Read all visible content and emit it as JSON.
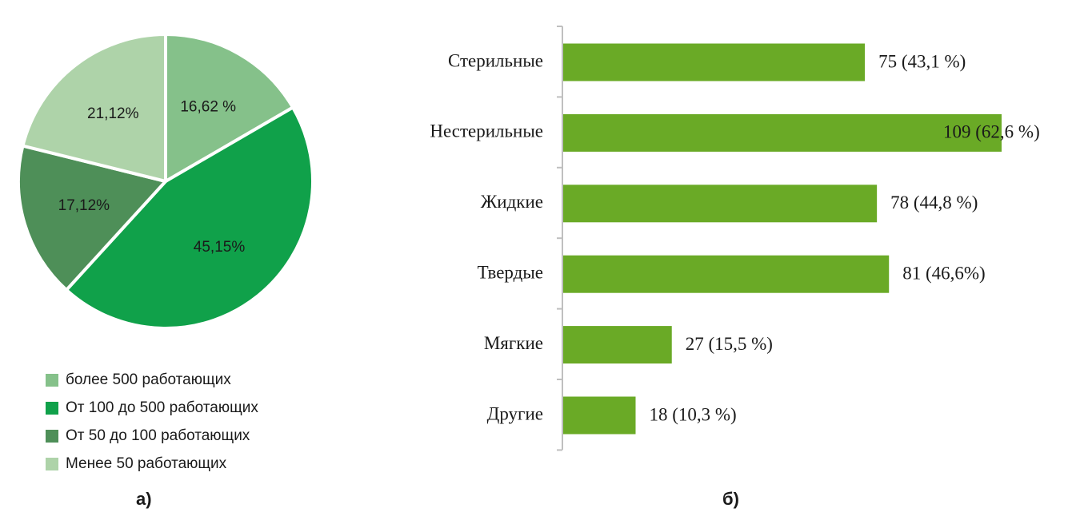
{
  "chart_data": [
    {
      "type": "pie",
      "panel_label": "а)",
      "slices": [
        {
          "name": "более 500 работающих",
          "value": 16.62,
          "label": "16,62 %",
          "color": "#85c18a"
        },
        {
          "name": "От 100 до 500 работающих",
          "value": 45.15,
          "label": "45,15%",
          "color": "#10a14a"
        },
        {
          "name": "От 50 до 100 работающих",
          "value": 17.12,
          "label": "17,12%",
          "color": "#4e8f58"
        },
        {
          "name": "Менее 50 работающих",
          "value": 21.12,
          "label": "21,12%",
          "color": "#aed3a9"
        }
      ],
      "legend_position": "bottom"
    },
    {
      "type": "bar",
      "orientation": "horizontal",
      "panel_label": "б)",
      "categories": [
        "Стерильные",
        "Нестерильные",
        "Жидкие",
        "Твердые",
        "Мягкие",
        "Другие"
      ],
      "values": [
        75,
        109,
        78,
        81,
        27,
        18
      ],
      "data_labels": [
        "75 (43,1 %)",
        "109 (62,6 %)",
        "78 (44,8 %)",
        "81 (46,6%)",
        "27 (15,5 %)",
        "18 (10,3 %)"
      ],
      "xlim": [
        0,
        109
      ],
      "bar_color": "#6aaa26",
      "grid": false
    }
  ]
}
